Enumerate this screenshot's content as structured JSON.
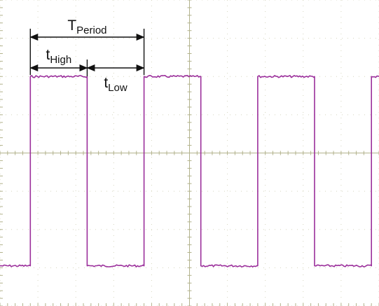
{
  "chart_data": {
    "type": "line",
    "title": "",
    "xlabel": "",
    "ylabel": "",
    "grid": true,
    "legend": "none",
    "xlim": [
      0,
      10
    ],
    "ylim": [
      -4,
      4
    ],
    "series": [
      {
        "color": "#9b2f9b",
        "x": [
          0,
          0.8,
          0.8,
          2.3,
          2.3,
          3.8,
          3.8,
          5.3,
          5.3,
          6.8,
          6.8,
          8.3,
          8.3,
          9.8,
          9.8,
          10
        ],
        "values": [
          -2.95,
          -2.95,
          2.0,
          2.0,
          -2.95,
          -2.95,
          2.0,
          2.0,
          -2.95,
          -2.95,
          2.0,
          2.0,
          -2.95,
          -2.95,
          2.0,
          2.0
        ]
      }
    ],
    "annotations": {
      "period": {
        "main": "T",
        "sub": "Period",
        "x_start": 0.8,
        "x_end": 3.8
      },
      "high": {
        "main": "t",
        "sub": "High",
        "x_start": 0.8,
        "x_end": 2.3
      },
      "low": {
        "main": "t",
        "sub": "Low",
        "x_start": 2.3,
        "x_end": 3.8
      }
    },
    "colors": {
      "grid_major": "#c8c8aa",
      "grid_center": "#b2b28c",
      "grid_dots": "#d5d5bf",
      "trace": "#9b2f9b",
      "arrows": "#111111"
    }
  }
}
